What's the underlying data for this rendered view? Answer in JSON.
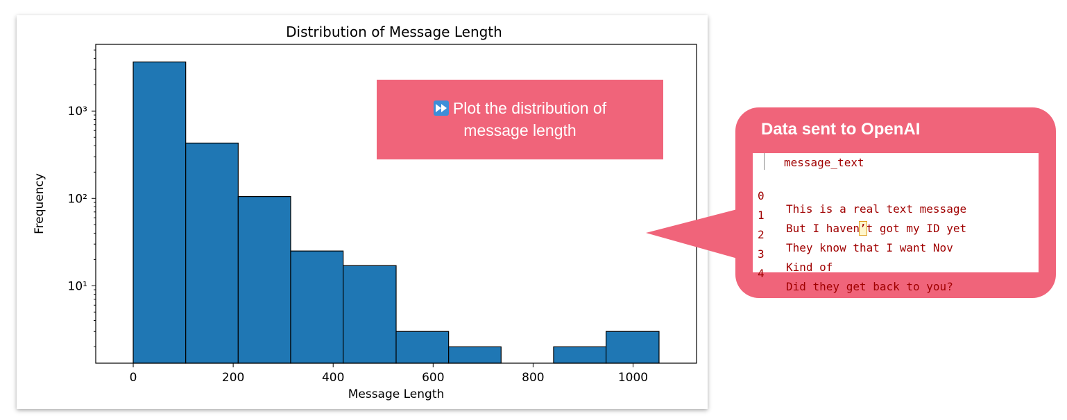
{
  "chart_data": {
    "type": "bar",
    "title": "Distribution of Message Length",
    "xlabel": "Message Length",
    "ylabel": "Frequency",
    "yscale": "log",
    "xlim": [
      -75,
      1127
    ],
    "ylim": [
      1.3,
      5800
    ],
    "xticks": [
      0,
      200,
      400,
      600,
      800,
      1000
    ],
    "yticks": [
      {
        "value": 10,
        "label": "10¹"
      },
      {
        "value": 100,
        "label": "10²"
      },
      {
        "value": 1000,
        "label": "10³"
      }
    ],
    "bins": [
      {
        "start": 0,
        "end": 105,
        "count": 3650
      },
      {
        "start": 105,
        "end": 210,
        "count": 430
      },
      {
        "start": 210,
        "end": 315,
        "count": 105
      },
      {
        "start": 315,
        "end": 420,
        "count": 25
      },
      {
        "start": 420,
        "end": 526,
        "count": 17
      },
      {
        "start": 526,
        "end": 631,
        "count": 3
      },
      {
        "start": 631,
        "end": 736,
        "count": 2
      },
      {
        "start": 736,
        "end": 841,
        "count": 0
      },
      {
        "start": 841,
        "end": 946,
        "count": 2
      },
      {
        "start": 946,
        "end": 1052,
        "count": 3
      }
    ],
    "bar_color": "#1f77b4",
    "edge_color": "#000000",
    "grid": false
  },
  "prompt": {
    "icon": "fast-forward-icon",
    "line1": "Plot the distribution of",
    "line2": "message length",
    "color": "#f0647a"
  },
  "callout": {
    "title": "Data sent to OpenAI",
    "color": "#f0647a",
    "column_header": "message_text",
    "rows": [
      {
        "index": "0",
        "text": "This is a real text message"
      },
      {
        "index": "1",
        "text_before": "But I haven",
        "text_highlight": "’",
        "text_after": "t got my ID yet"
      },
      {
        "index": "2",
        "text": "They know that I want Nov"
      },
      {
        "index": "3",
        "text": "Kind of"
      },
      {
        "index": "4",
        "text": "Did they get back to you?"
      }
    ]
  }
}
